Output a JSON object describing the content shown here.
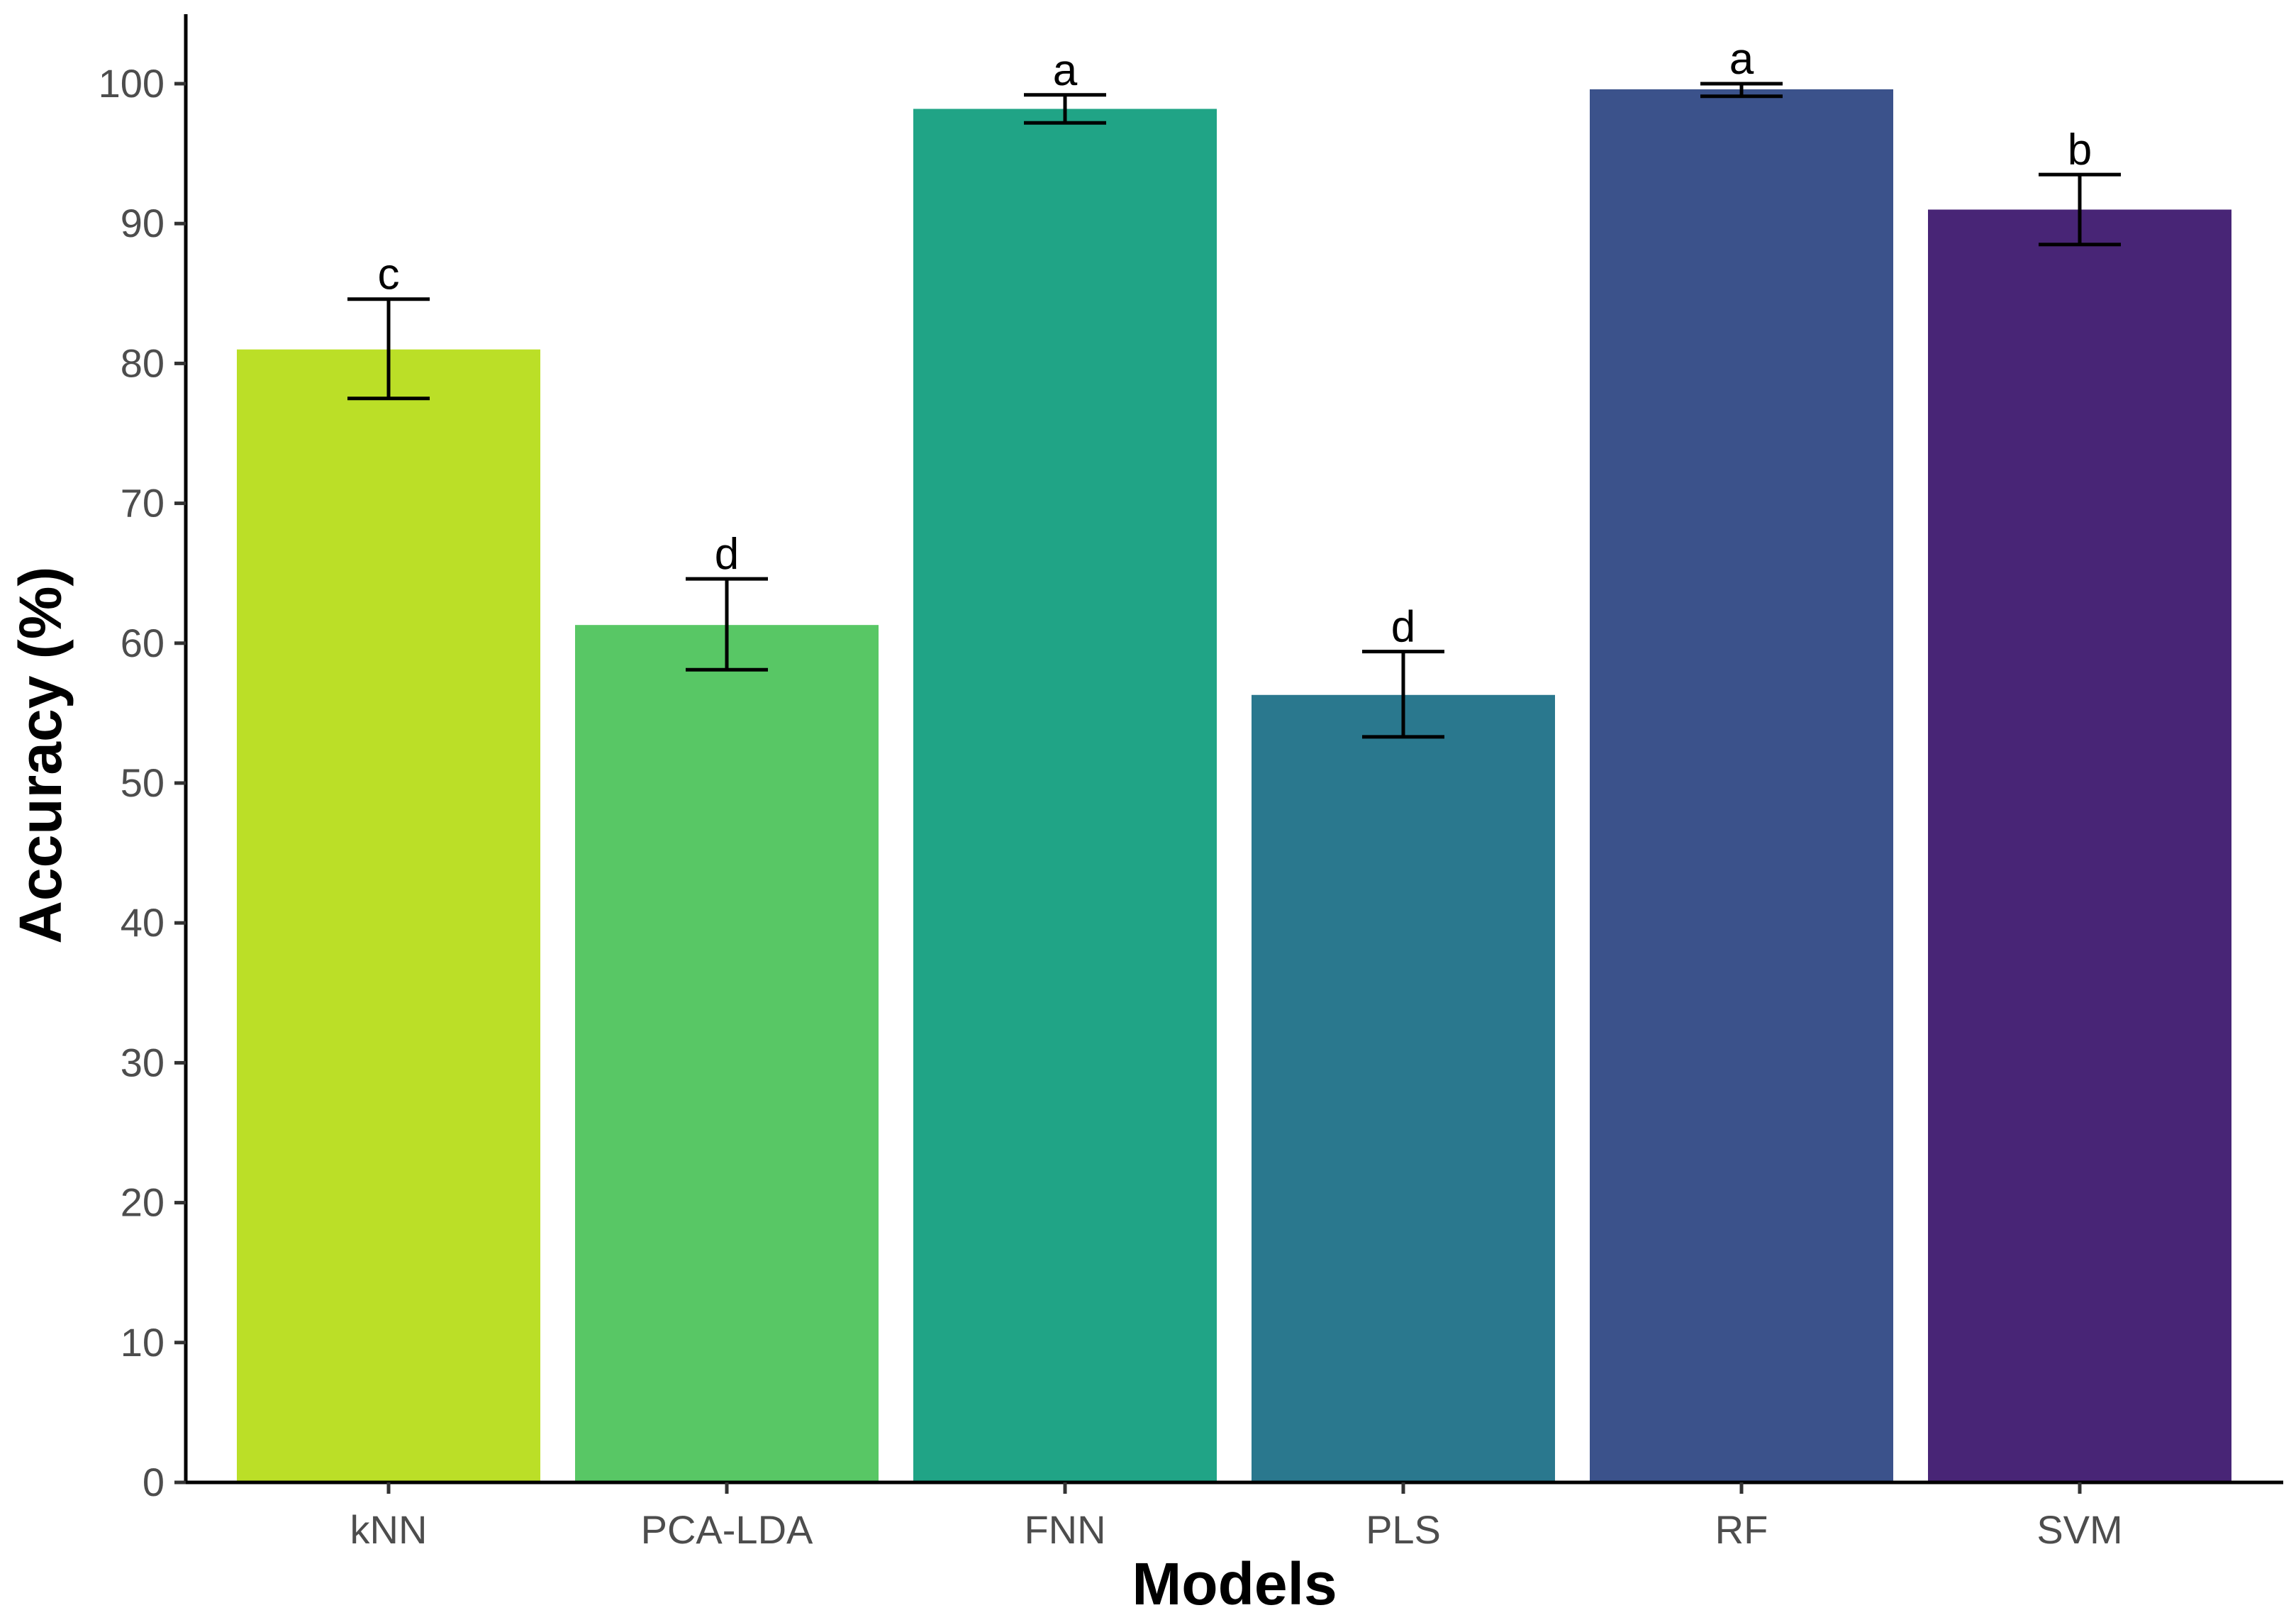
{
  "chart_data": {
    "type": "bar",
    "title": "",
    "xlabel": "Models",
    "ylabel": "Accuracy (%)",
    "ylim": [
      0,
      105
    ],
    "yticks": [
      0,
      10,
      20,
      30,
      40,
      50,
      60,
      70,
      80,
      90,
      100
    ],
    "grid": false,
    "legend": "none",
    "categories": [
      "kNN",
      "PCA-LDA",
      "FNN",
      "PLS",
      "RF",
      "SVM"
    ],
    "values": [
      81.0,
      61.3,
      98.2,
      56.3,
      99.6,
      91.0
    ],
    "error_low": [
      77.5,
      58.1,
      97.2,
      53.3,
      99.1,
      88.5
    ],
    "error_high": [
      84.6,
      64.6,
      99.2,
      59.4,
      100.0,
      93.5
    ],
    "significance": [
      "c",
      "d",
      "a",
      "d",
      "a",
      "b"
    ],
    "colors": [
      "#BBDF27",
      "#58C765",
      "#20A486",
      "#2A788E",
      "#3B528B",
      "#482576"
    ]
  }
}
